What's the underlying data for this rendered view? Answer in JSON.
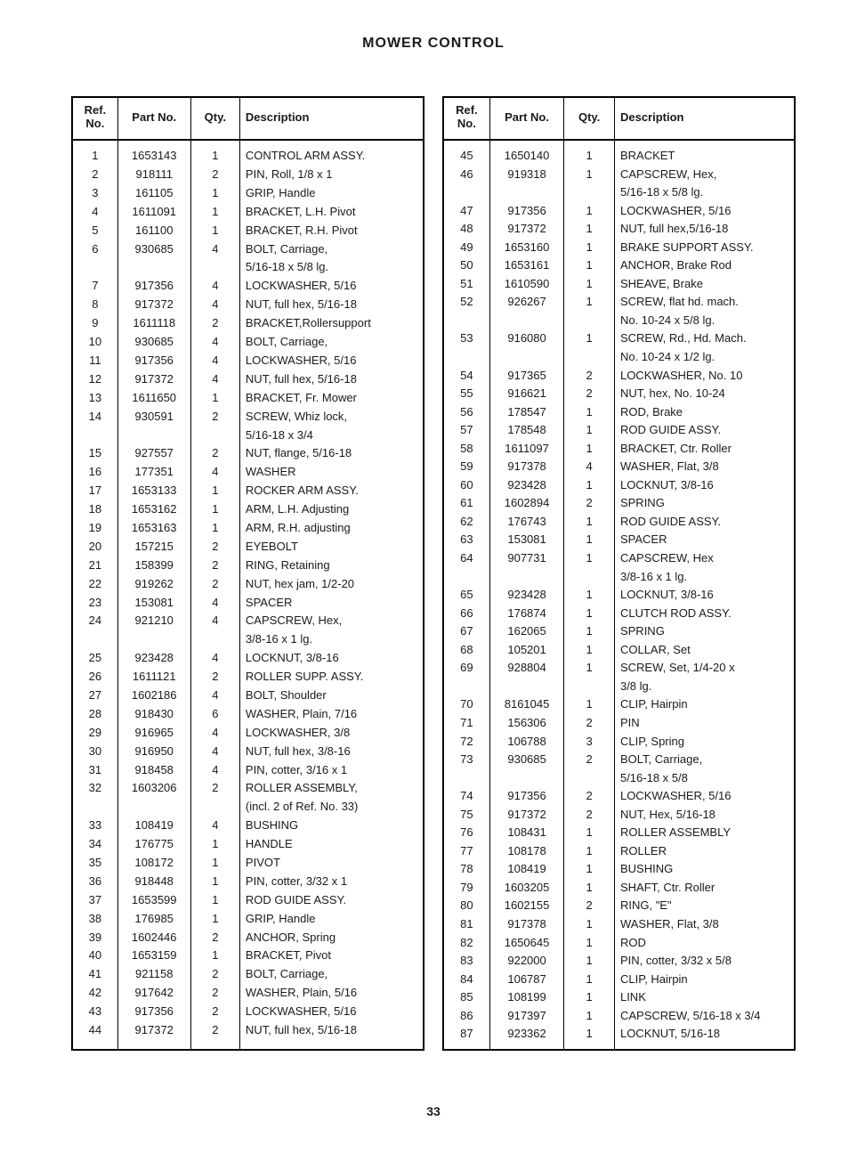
{
  "title": "MOWER CONTROL",
  "page_number": "33",
  "headers": [
    "Ref. No.",
    "Part No.",
    "Qty.",
    "Description"
  ],
  "left_rows": [
    [
      "1",
      "1653143",
      "1",
      "CONTROL ARM ASSY."
    ],
    [
      "2",
      "918111",
      "2",
      "PIN, Roll, 1/8 x 1"
    ],
    [
      "3",
      "161105",
      "1",
      "GRIP, Handle"
    ],
    [
      "4",
      "1611091",
      "1",
      "BRACKET, L.H. Pivot"
    ],
    [
      "5",
      "161100",
      "1",
      "BRACKET, R.H. Pivot"
    ],
    [
      "6",
      "930685",
      "4",
      "BOLT, Carriage,"
    ],
    [
      "",
      "",
      "",
      "  5/16-18 x 5/8 lg."
    ],
    [
      "7",
      "917356",
      "4",
      "LOCKWASHER, 5/16"
    ],
    [
      "8",
      "917372",
      "4",
      "NUT, full hex, 5/16-18"
    ],
    [
      "9",
      "1611118",
      "2",
      "BRACKET,Rollersupport"
    ],
    [
      "10",
      "930685",
      "4",
      "BOLT, Carriage,"
    ],
    [
      "11",
      "917356",
      "4",
      "LOCKWASHER, 5/16"
    ],
    [
      "12",
      "917372",
      "4",
      "NUT, full hex, 5/16-18"
    ],
    [
      "13",
      "1611650",
      "1",
      "BRACKET, Fr. Mower"
    ],
    [
      "14",
      "930591",
      "2",
      "SCREW, Whiz lock,"
    ],
    [
      "",
      "",
      "",
      "  5/16-18 x 3/4"
    ],
    [
      "15",
      "927557",
      "2",
      "NUT, flange, 5/16-18"
    ],
    [
      "16",
      "177351",
      "4",
      "WASHER"
    ],
    [
      "17",
      "1653133",
      "1",
      "ROCKER ARM ASSY."
    ],
    [
      "18",
      "1653162",
      "1",
      "ARM, L.H. Adjusting"
    ],
    [
      "19",
      "1653163",
      "1",
      "ARM, R.H. adjusting"
    ],
    [
      "20",
      "157215",
      "2",
      "EYEBOLT"
    ],
    [
      "21",
      "158399",
      "2",
      "RING, Retaining"
    ],
    [
      "22",
      "919262",
      "2",
      "NUT, hex jam, 1/2-20"
    ],
    [
      "23",
      "153081",
      "4",
      "SPACER"
    ],
    [
      "24",
      "921210",
      "4",
      "CAPSCREW, Hex,"
    ],
    [
      "",
      "",
      "",
      "  3/8-16 x 1 lg."
    ],
    [
      "25",
      "923428",
      "4",
      "LOCKNUT, 3/8-16"
    ],
    [
      "26",
      "1611121",
      "2",
      "ROLLER SUPP. ASSY."
    ],
    [
      "27",
      "1602186",
      "4",
      "BOLT, Shoulder"
    ],
    [
      "28",
      "918430",
      "6",
      "WASHER, Plain, 7/16"
    ],
    [
      "29",
      "916965",
      "4",
      "LOCKWASHER, 3/8"
    ],
    [
      "30",
      "916950",
      "4",
      "NUT, full hex, 3/8-16"
    ],
    [
      "31",
      "918458",
      "4",
      "PIN, cotter, 3/16 x 1"
    ],
    [
      "32",
      "1603206",
      "2",
      "ROLLER ASSEMBLY,"
    ],
    [
      "",
      "",
      "",
      "  (incl. 2 of Ref. No. 33)"
    ],
    [
      "33",
      "108419",
      "4",
      "BUSHING"
    ],
    [
      "34",
      "176775",
      "1",
      "HANDLE"
    ],
    [
      "35",
      "108172",
      "1",
      "PIVOT"
    ],
    [
      "36",
      "918448",
      "1",
      "PIN, cotter, 3/32 x 1"
    ],
    [
      "37",
      "1653599",
      "1",
      "ROD GUIDE ASSY."
    ],
    [
      "38",
      "176985",
      "1",
      "GRIP, Handle"
    ],
    [
      "39",
      "1602446",
      "2",
      "ANCHOR, Spring"
    ],
    [
      "40",
      "1653159",
      "1",
      "BRACKET, Pivot"
    ],
    [
      "41",
      "921158",
      "2",
      "BOLT, Carriage,"
    ],
    [
      "42",
      "917642",
      "2",
      "WASHER, Plain, 5/16"
    ],
    [
      "43",
      "917356",
      "2",
      "LOCKWASHER, 5/16"
    ],
    [
      "44",
      "917372",
      "2",
      "NUT, full hex, 5/16-18"
    ],
    [
      "",
      "",
      "",
      ""
    ]
  ],
  "right_rows": [
    [
      "45",
      "1650140",
      "1",
      "BRACKET"
    ],
    [
      "46",
      "919318",
      "1",
      "CAPSCREW, Hex,"
    ],
    [
      "",
      "",
      "",
      "  5/16-18 x 5/8 lg."
    ],
    [
      "47",
      "917356",
      "1",
      "LOCKWASHER, 5/16"
    ],
    [
      "48",
      "917372",
      "1",
      "NUT, full hex,5/16-18"
    ],
    [
      "49",
      "1653160",
      "1",
      "BRAKE SUPPORT ASSY."
    ],
    [
      "50",
      "1653161",
      "1",
      "ANCHOR, Brake Rod"
    ],
    [
      "51",
      "1610590",
      "1",
      "SHEAVE, Brake"
    ],
    [
      "52",
      "926267",
      "1",
      "SCREW, flat hd. mach."
    ],
    [
      "",
      "",
      "",
      "  No. 10-24 x 5/8 lg."
    ],
    [
      "53",
      "916080",
      "1",
      "SCREW, Rd., Hd. Mach."
    ],
    [
      "",
      "",
      "",
      "  No. 10-24 x 1/2 lg."
    ],
    [
      "54",
      "917365",
      "2",
      "LOCKWASHER, No. 10"
    ],
    [
      "55",
      "916621",
      "2",
      "NUT, hex, No. 10-24"
    ],
    [
      "56",
      "178547",
      "1",
      "ROD, Brake"
    ],
    [
      "57",
      "178548",
      "1",
      "ROD GUIDE ASSY."
    ],
    [
      "58",
      "1611097",
      "1",
      "BRACKET, Ctr. Roller"
    ],
    [
      "59",
      "917378",
      "4",
      "WASHER, Flat, 3/8"
    ],
    [
      "60",
      "923428",
      "1",
      "LOCKNUT, 3/8-16"
    ],
    [
      "61",
      "1602894",
      "2",
      "SPRING"
    ],
    [
      "62",
      "176743",
      "1",
      "ROD GUIDE ASSY."
    ],
    [
      "63",
      "153081",
      "1",
      "SPACER"
    ],
    [
      "64",
      "907731",
      "1",
      "CAPSCREW, Hex"
    ],
    [
      "",
      "",
      "",
      "  3/8-16 x 1 lg."
    ],
    [
      "65",
      "923428",
      "1",
      "LOCKNUT, 3/8-16"
    ],
    [
      "66",
      "176874",
      "1",
      "CLUTCH ROD ASSY."
    ],
    [
      "67",
      "162065",
      "1",
      "SPRING"
    ],
    [
      "68",
      "105201",
      "1",
      "COLLAR, Set"
    ],
    [
      "69",
      "928804",
      "1",
      "SCREW, Set, 1/4-20 x"
    ],
    [
      "",
      "",
      "",
      "  3/8 lg."
    ],
    [
      "70",
      "8161045",
      "1",
      "CLIP, Hairpin"
    ],
    [
      "71",
      "156306",
      "2",
      "PIN"
    ],
    [
      "72",
      "106788",
      "3",
      "CLIP, Spring"
    ],
    [
      "73",
      "930685",
      "2",
      "BOLT, Carriage,"
    ],
    [
      "",
      "",
      "",
      "  5/16-18 x 5/8"
    ],
    [
      "74",
      "917356",
      "2",
      "LOCKWASHER, 5/16"
    ],
    [
      "75",
      "917372",
      "2",
      "NUT, Hex, 5/16-18"
    ],
    [
      "76",
      "108431",
      "1",
      "ROLLER ASSEMBLY"
    ],
    [
      "77",
      "108178",
      "1",
      "ROLLER"
    ],
    [
      "78",
      "108419",
      "1",
      "BUSHING"
    ],
    [
      "79",
      "1603205",
      "1",
      "SHAFT, Ctr. Roller"
    ],
    [
      "80",
      "1602155",
      "2",
      "RING, \"E\""
    ],
    [
      "81",
      "917378",
      "1",
      "WASHER, Flat, 3/8"
    ],
    [
      "82",
      "1650645",
      "1",
      "ROD"
    ],
    [
      "83",
      "922000",
      "1",
      "PIN, cotter, 3/32 x 5/8"
    ],
    [
      "84",
      "106787",
      "1",
      "CLIP, Hairpin"
    ],
    [
      "85",
      "108199",
      "1",
      "LINK"
    ],
    [
      "86",
      "917397",
      "1",
      "CAPSCREW, 5/16-18 x 3/4"
    ],
    [
      "87",
      "923362",
      "1",
      "LOCKNUT, 5/16-18"
    ]
  ]
}
